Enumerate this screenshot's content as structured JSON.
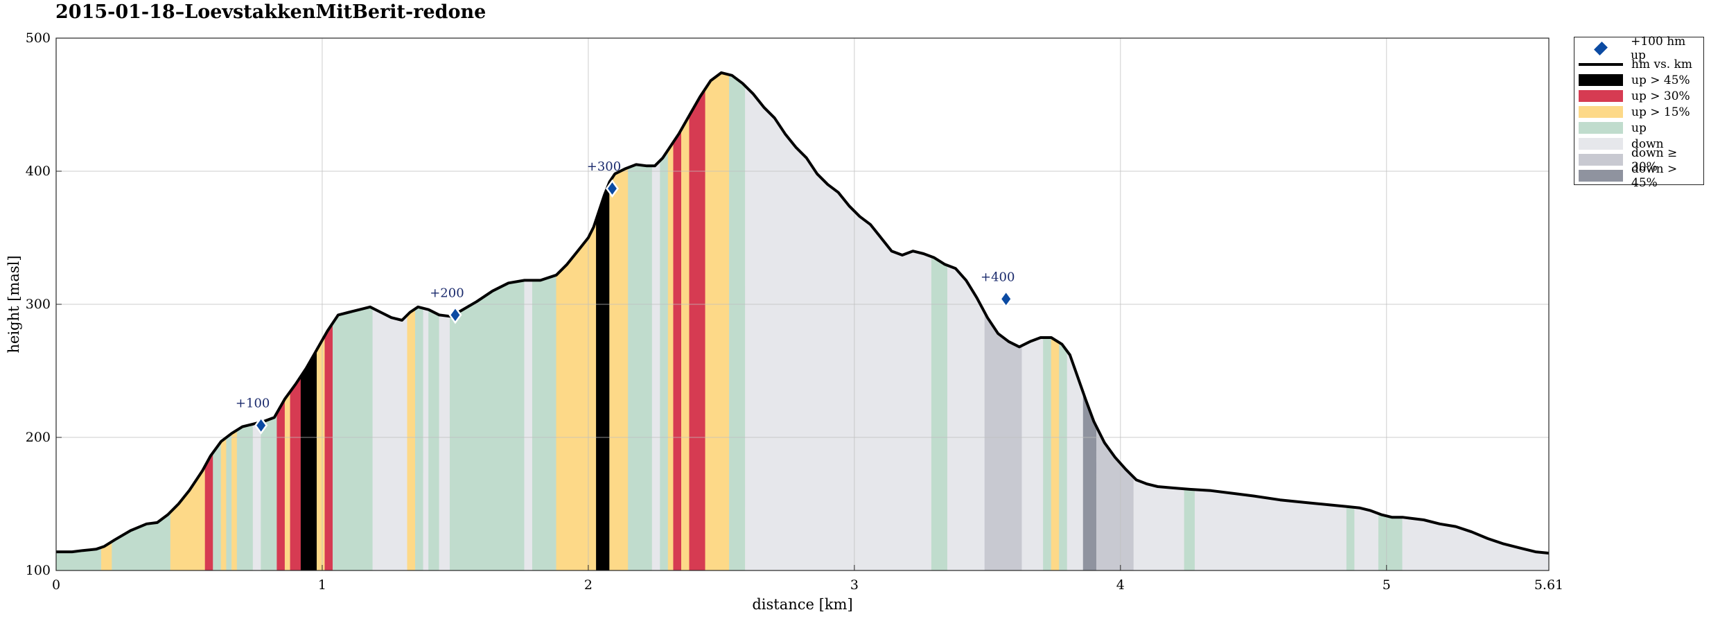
{
  "title": "2015-01-18–LoevstakkenMitBerit-redone",
  "chart_data": {
    "type": "area",
    "xlabel": "distance [km]",
    "ylabel": "height [masl]",
    "xlim": [
      0,
      5.61
    ],
    "ylim": [
      100,
      500
    ],
    "xticks": [
      "0",
      "1",
      "2",
      "3",
      "4",
      "5",
      "5.61"
    ],
    "xtick_values": [
      0,
      1,
      2,
      3,
      4,
      5,
      5.61
    ],
    "yticks": [
      "100",
      "200",
      "300",
      "400",
      "500"
    ],
    "ytick_values": [
      100,
      200,
      300,
      400,
      500
    ],
    "grid": true,
    "legend_placement": "outside-top-right",
    "series": [
      {
        "name": "hm vs. km",
        "x": [
          0,
          0.06,
          0.1,
          0.15,
          0.18,
          0.22,
          0.28,
          0.34,
          0.38,
          0.42,
          0.46,
          0.5,
          0.55,
          0.58,
          0.62,
          0.66,
          0.7,
          0.74,
          0.78,
          0.82,
          0.86,
          0.9,
          0.94,
          0.98,
          1.02,
          1.06,
          1.1,
          1.14,
          1.18,
          1.22,
          1.26,
          1.3,
          1.33,
          1.36,
          1.4,
          1.44,
          1.48,
          1.52,
          1.58,
          1.64,
          1.7,
          1.76,
          1.82,
          1.88,
          1.92,
          1.96,
          2.0,
          2.02,
          2.04,
          2.06,
          2.08,
          2.1,
          2.14,
          2.18,
          2.22,
          2.25,
          2.28,
          2.3,
          2.34,
          2.38,
          2.42,
          2.46,
          2.5,
          2.54,
          2.58,
          2.62,
          2.66,
          2.7,
          2.74,
          2.78,
          2.82,
          2.86,
          2.9,
          2.94,
          2.98,
          3.02,
          3.06,
          3.1,
          3.14,
          3.18,
          3.22,
          3.26,
          3.3,
          3.34,
          3.38,
          3.42,
          3.46,
          3.5,
          3.54,
          3.58,
          3.62,
          3.66,
          3.7,
          3.74,
          3.78,
          3.81,
          3.84,
          3.87,
          3.9,
          3.94,
          3.98,
          4.02,
          4.06,
          4.1,
          4.14,
          4.2,
          4.26,
          4.34,
          4.42,
          4.5,
          4.6,
          4.7,
          4.8,
          4.85,
          4.9,
          4.94,
          4.98,
          5.02,
          5.06,
          5.1,
          5.14,
          5.2,
          5.26,
          5.32,
          5.38,
          5.44,
          5.5,
          5.56,
          5.61
        ],
        "y": [
          114,
          114,
          115,
          116,
          118,
          123,
          130,
          135,
          136,
          142,
          150,
          160,
          175,
          186,
          197,
          203,
          208,
          210,
          212,
          215,
          229,
          240,
          252,
          266,
          280,
          292,
          294,
          296,
          298,
          294,
          290,
          288,
          294,
          298,
          296,
          292,
          291,
          295,
          302,
          310,
          316,
          318,
          318,
          322,
          330,
          340,
          350,
          358,
          370,
          382,
          392,
          398,
          402,
          405,
          404,
          404,
          410,
          416,
          428,
          442,
          456,
          468,
          474,
          472,
          466,
          458,
          448,
          440,
          428,
          418,
          410,
          398,
          390,
          384,
          374,
          366,
          360,
          350,
          340,
          337,
          340,
          338,
          335,
          330,
          327,
          318,
          305,
          290,
          278,
          272,
          268,
          272,
          275,
          275,
          270,
          262,
          245,
          228,
          212,
          196,
          185,
          176,
          168,
          165,
          163,
          162,
          161,
          160,
          158,
          156,
          153,
          151,
          149,
          148,
          147,
          145,
          142,
          140,
          140,
          139,
          138,
          135,
          133,
          129,
          124,
          120,
          117,
          114,
          113
        ]
      }
    ],
    "markers": {
      "name": "+100 hm up",
      "points": [
        {
          "x": 0.77,
          "y": 209,
          "label": "+100"
        },
        {
          "x": 1.5,
          "y": 292,
          "label": "+200"
        },
        {
          "x": 2.09,
          "y": 387,
          "label": "+300"
        },
        {
          "x": 3.57,
          "y": 304,
          "label": "+400"
        }
      ]
    },
    "categories": [
      {
        "key": "steep45",
        "name": "up > 45%",
        "color": "#000000"
      },
      {
        "key": "steep30",
        "name": "up > 30%",
        "color": "#d63b52"
      },
      {
        "key": "steep15",
        "name": "up > 15%",
        "color": "#fdd988"
      },
      {
        "key": "up",
        "name": "up",
        "color": "#c0dccd"
      },
      {
        "key": "down",
        "name": "down",
        "color": "#e6e7eb"
      },
      {
        "key": "down30",
        "name": "down ≥ 30%",
        "color": "#c8c9d1"
      },
      {
        "key": "down45",
        "name": "down > 45%",
        "color": "#8f939f"
      }
    ],
    "segments": [
      {
        "from": 0.0,
        "to": 0.06,
        "cat": "up"
      },
      {
        "from": 0.06,
        "to": 0.17,
        "cat": "up"
      },
      {
        "from": 0.17,
        "to": 0.21,
        "cat": "steep15"
      },
      {
        "from": 0.21,
        "to": 0.43,
        "cat": "up"
      },
      {
        "from": 0.43,
        "to": 0.56,
        "cat": "steep15"
      },
      {
        "from": 0.56,
        "to": 0.59,
        "cat": "steep30"
      },
      {
        "from": 0.59,
        "to": 0.62,
        "cat": "up"
      },
      {
        "from": 0.62,
        "to": 0.64,
        "cat": "steep15"
      },
      {
        "from": 0.64,
        "to": 0.66,
        "cat": "up"
      },
      {
        "from": 0.66,
        "to": 0.68,
        "cat": "steep15"
      },
      {
        "from": 0.68,
        "to": 0.74,
        "cat": "up"
      },
      {
        "from": 0.74,
        "to": 0.77,
        "cat": "down"
      },
      {
        "from": 0.77,
        "to": 0.83,
        "cat": "up"
      },
      {
        "from": 0.83,
        "to": 0.86,
        "cat": "steep30"
      },
      {
        "from": 0.86,
        "to": 0.88,
        "cat": "steep15"
      },
      {
        "from": 0.88,
        "to": 0.92,
        "cat": "steep30"
      },
      {
        "from": 0.92,
        "to": 0.98,
        "cat": "steep45"
      },
      {
        "from": 0.98,
        "to": 1.01,
        "cat": "steep15"
      },
      {
        "from": 1.01,
        "to": 1.04,
        "cat": "steep30"
      },
      {
        "from": 1.04,
        "to": 1.19,
        "cat": "up"
      },
      {
        "from": 1.19,
        "to": 1.32,
        "cat": "down"
      },
      {
        "from": 1.32,
        "to": 1.35,
        "cat": "steep15"
      },
      {
        "from": 1.35,
        "to": 1.38,
        "cat": "up"
      },
      {
        "from": 1.38,
        "to": 1.4,
        "cat": "down"
      },
      {
        "from": 1.4,
        "to": 1.44,
        "cat": "up"
      },
      {
        "from": 1.44,
        "to": 1.48,
        "cat": "down"
      },
      {
        "from": 1.48,
        "to": 1.76,
        "cat": "up"
      },
      {
        "from": 1.76,
        "to": 1.79,
        "cat": "down"
      },
      {
        "from": 1.79,
        "to": 1.88,
        "cat": "up"
      },
      {
        "from": 1.88,
        "to": 2.03,
        "cat": "steep15"
      },
      {
        "from": 2.03,
        "to": 2.08,
        "cat": "steep45"
      },
      {
        "from": 2.08,
        "to": 2.15,
        "cat": "steep15"
      },
      {
        "from": 2.15,
        "to": 2.24,
        "cat": "up"
      },
      {
        "from": 2.24,
        "to": 2.27,
        "cat": "down"
      },
      {
        "from": 2.27,
        "to": 2.3,
        "cat": "up"
      },
      {
        "from": 2.3,
        "to": 2.32,
        "cat": "steep15"
      },
      {
        "from": 2.32,
        "to": 2.35,
        "cat": "steep30"
      },
      {
        "from": 2.35,
        "to": 2.38,
        "cat": "steep15"
      },
      {
        "from": 2.38,
        "to": 2.44,
        "cat": "steep30"
      },
      {
        "from": 2.44,
        "to": 2.53,
        "cat": "steep15"
      },
      {
        "from": 2.53,
        "to": 2.59,
        "cat": "up"
      },
      {
        "from": 2.59,
        "to": 3.29,
        "cat": "down"
      },
      {
        "from": 3.29,
        "to": 3.35,
        "cat": "up"
      },
      {
        "from": 3.35,
        "to": 3.49,
        "cat": "down"
      },
      {
        "from": 3.49,
        "to": 3.63,
        "cat": "down30"
      },
      {
        "from": 3.63,
        "to": 3.71,
        "cat": "down"
      },
      {
        "from": 3.71,
        "to": 3.74,
        "cat": "up"
      },
      {
        "from": 3.74,
        "to": 3.77,
        "cat": "steep15"
      },
      {
        "from": 3.77,
        "to": 3.8,
        "cat": "up"
      },
      {
        "from": 3.8,
        "to": 3.86,
        "cat": "down"
      },
      {
        "from": 3.86,
        "to": 3.91,
        "cat": "down45"
      },
      {
        "from": 3.91,
        "to": 4.05,
        "cat": "down30"
      },
      {
        "from": 4.05,
        "to": 4.24,
        "cat": "down"
      },
      {
        "from": 4.24,
        "to": 4.28,
        "cat": "up"
      },
      {
        "from": 4.28,
        "to": 4.85,
        "cat": "down"
      },
      {
        "from": 4.85,
        "to": 4.88,
        "cat": "up"
      },
      {
        "from": 4.88,
        "to": 4.97,
        "cat": "down"
      },
      {
        "from": 4.97,
        "to": 5.06,
        "cat": "up"
      },
      {
        "from": 5.06,
        "to": 5.61,
        "cat": "down"
      }
    ]
  },
  "legend": {
    "items": [
      {
        "label": "+100 hm up",
        "kind": "marker",
        "color": "#0b4aa2"
      },
      {
        "label": "hm vs. km",
        "kind": "line",
        "color": "#000000"
      },
      {
        "label": "up > 45%",
        "kind": "swatch",
        "color": "#000000"
      },
      {
        "label": "up > 30%",
        "kind": "swatch",
        "color": "#d63b52"
      },
      {
        "label": "up > 15%",
        "kind": "swatch",
        "color": "#fdd988"
      },
      {
        "label": "up",
        "kind": "swatch",
        "color": "#c0dccd"
      },
      {
        "label": "down",
        "kind": "swatch",
        "color": "#e6e7eb"
      },
      {
        "label": "down ≥ 30%",
        "kind": "swatch",
        "color": "#c8c9d1"
      },
      {
        "label": "down > 45%",
        "kind": "swatch",
        "color": "#8f939f"
      }
    ]
  }
}
